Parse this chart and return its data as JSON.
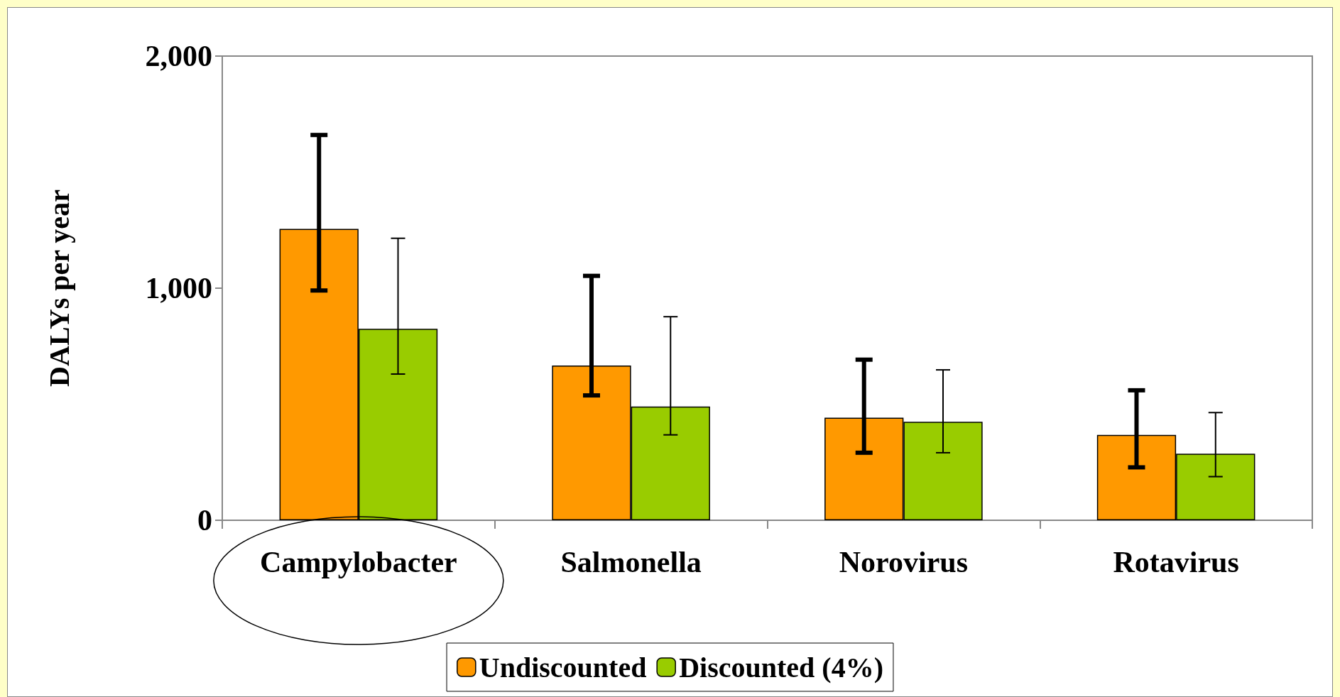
{
  "chart_data": {
    "type": "bar",
    "ylabel": "DALYs per year",
    "categories": [
      "Campylobacter",
      "Salmonella",
      "Norovirus",
      "Rotavirus"
    ],
    "series": [
      {
        "name": "Undiscounted",
        "color": "#ff9900",
        "values": [
          1255,
          667,
          442,
          368
        ],
        "errors": [
          [
            990,
            1660
          ],
          [
            538,
            1053
          ],
          [
            291,
            692
          ],
          [
            228,
            560
          ]
        ]
      },
      {
        "name": "Discounted (4%)",
        "color": "#99cc00",
        "values": [
          825,
          490,
          424,
          287
        ],
        "errors": [
          [
            630,
            1215
          ],
          [
            368,
            877
          ],
          [
            291,
            648
          ],
          [
            188,
            464
          ]
        ]
      }
    ],
    "ylim": [
      0,
      2000
    ],
    "yticks": [
      {
        "value": 0,
        "label": "0"
      },
      {
        "value": 1000,
        "label": "1,000"
      },
      {
        "value": 2000,
        "label": "2,000"
      }
    ],
    "grid": false,
    "legend": "bottom"
  }
}
